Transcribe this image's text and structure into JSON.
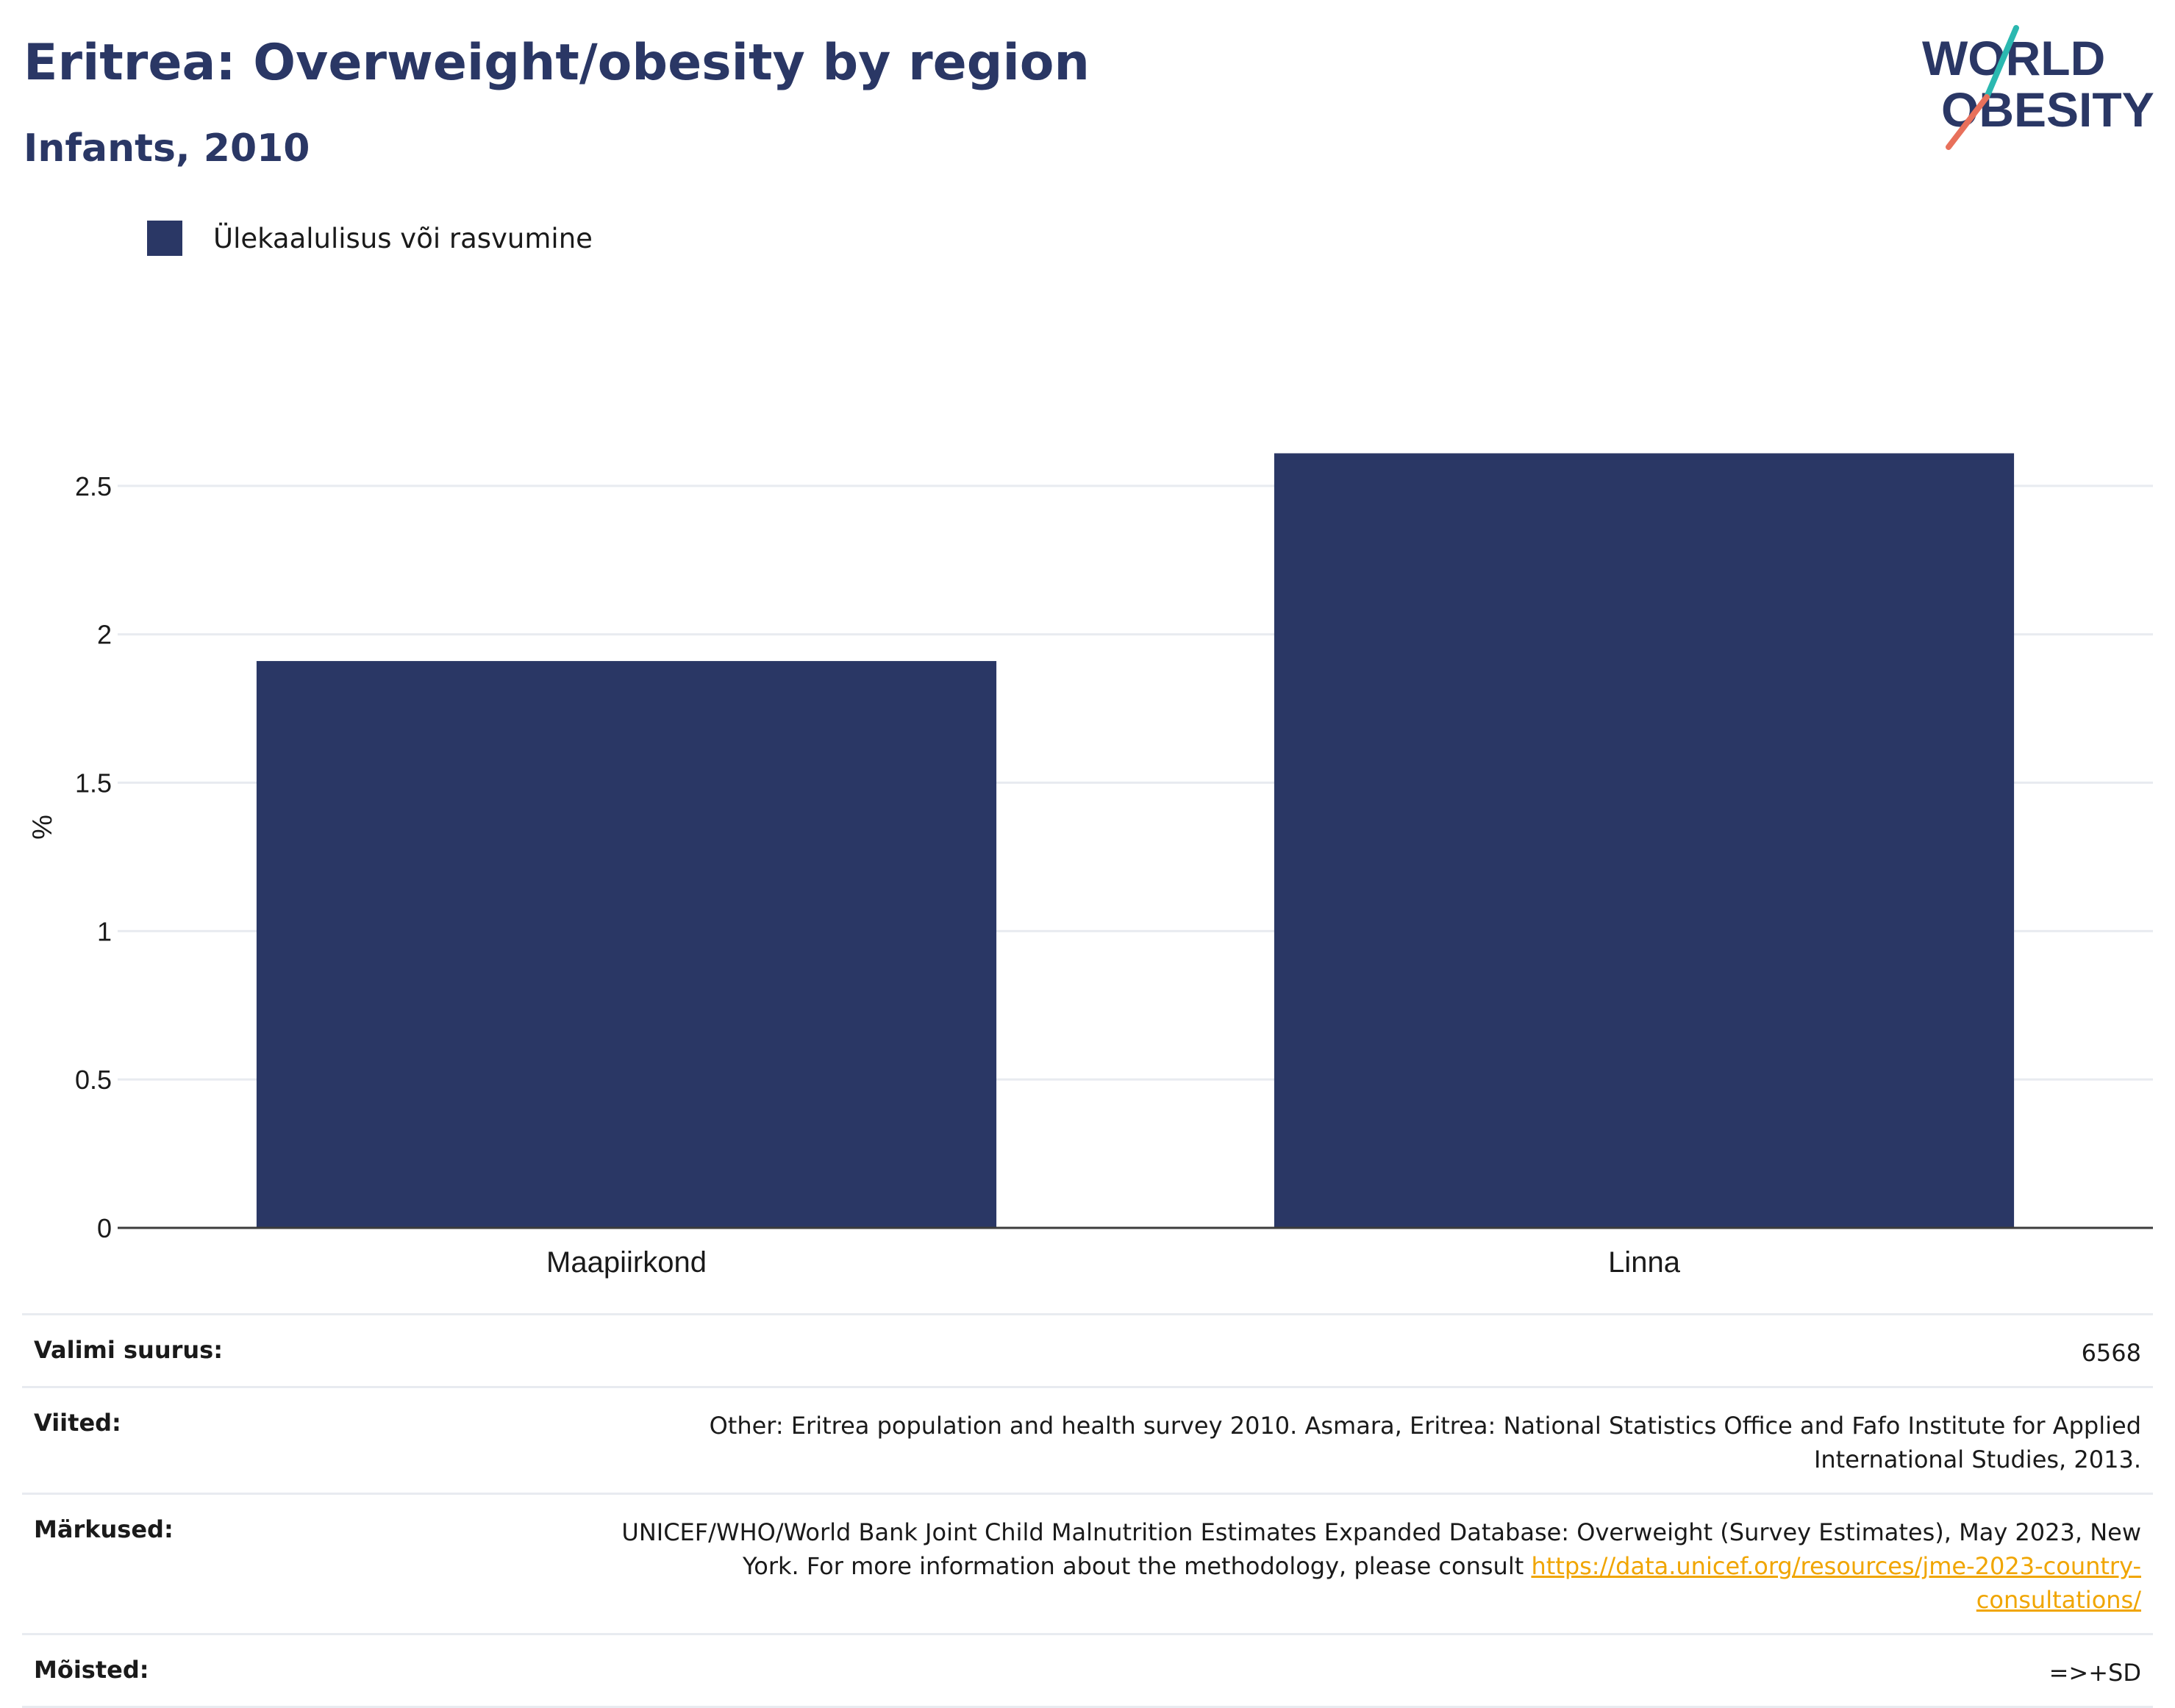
{
  "header": {
    "title": "Eritrea: Overweight/obesity by region",
    "subtitle": "Infants, 2010"
  },
  "logo": {
    "line1": "WORLD",
    "line2": "OBESITY",
    "colors": {
      "text": "#2a3765",
      "teal": "#2bb8b0",
      "coral": "#e8705b"
    }
  },
  "legend": {
    "label": "Ülekaalulisus või rasvumine",
    "color": "#2a3765"
  },
  "chart_data": {
    "type": "bar",
    "title": "Eritrea: Overweight/obesity by region",
    "subtitle": "Infants, 2010",
    "categories": [
      "Maapiirkond",
      "Linna"
    ],
    "series": [
      {
        "name": "Ülekaalulisus või rasvumine",
        "values": [
          1.91,
          2.61
        ],
        "color": "#2a3765"
      }
    ],
    "ylabel": "%",
    "ylim": [
      0,
      2.75
    ],
    "yticks": [
      0,
      0.5,
      1,
      1.5,
      2,
      2.5
    ],
    "ytick_labels": [
      "0",
      "0.5",
      "1",
      "1.5",
      "2",
      "2.5"
    ],
    "grid": true,
    "legend_position": "top-left"
  },
  "info": {
    "sample_size": {
      "label": "Valimi suurus:",
      "value": "6568"
    },
    "references": {
      "label": "Viited:",
      "value": "Other: Eritrea population and health survey 2010. Asmara, Eritrea: National Statistics Office and Fafo Institute for Applied International Studies, 2013."
    },
    "notes": {
      "label": "Märkused:",
      "value": "UNICEF/WHO/World Bank Joint Child Malnutrition Estimates Expanded Database: Overweight (Survey Estimates), May 2023, New York. For more information about the methodology, please consult ",
      "link": "https://data.unicef.org/resources/jme-2023-country-consultations/"
    },
    "definitions": {
      "label": "Mõisted:",
      "value": "=>+SD"
    }
  }
}
